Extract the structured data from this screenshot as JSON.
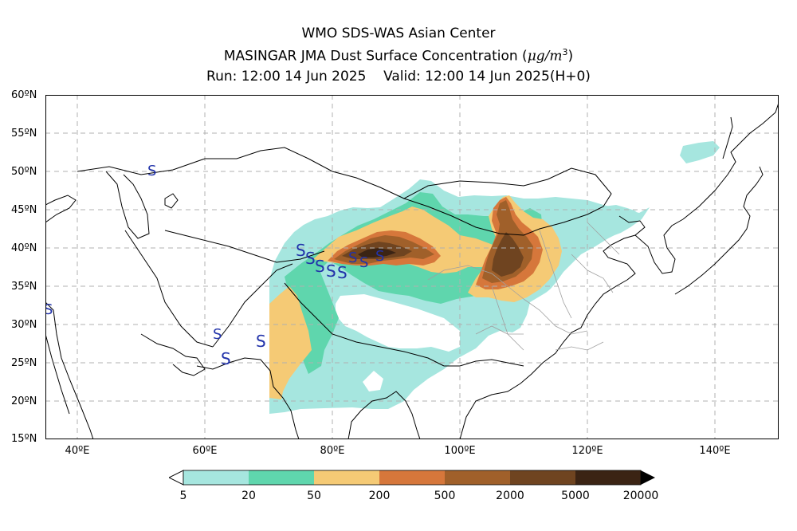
{
  "title": {
    "line1": "WMO SDS-WAS Asian Center",
    "line2_main": "MASINGAR JMA Dust Surface Concentration (",
    "line2_unit_mu": "μg/m",
    "line2_unit_exp": "3",
    "line2_close": ")",
    "line3_run": "Run: 12:00 14 Jun 2025",
    "line3_valid": "Valid: 12:00 14 Jun 2025(H+0)"
  },
  "map": {
    "lon_range": [
      35,
      150
    ],
    "lat_range": [
      15,
      60
    ],
    "lat_ticks": [
      "60ºN",
      "55ºN",
      "50ºN",
      "45ºN",
      "40ºN",
      "35ºN",
      "30ºN",
      "25ºN",
      "20ºN",
      "15ºN"
    ],
    "lon_ticks": [
      "40ºE",
      "60ºE",
      "80ºE",
      "100ºE",
      "120ºE",
      "140ºE"
    ],
    "gridlines": true,
    "weather_symbol": "S",
    "weather_symbol_meaning": "dust-storm-station-marker"
  },
  "colorbar": {
    "labels": [
      "5",
      "20",
      "50",
      "200",
      "500",
      "2000",
      "5000",
      "20000"
    ],
    "colors": [
      "#a6e6df",
      "#5fd6ad",
      "#f5ca75",
      "#d6773b",
      "#a0602a",
      "#6f4420",
      "#3b2414"
    ]
  }
}
